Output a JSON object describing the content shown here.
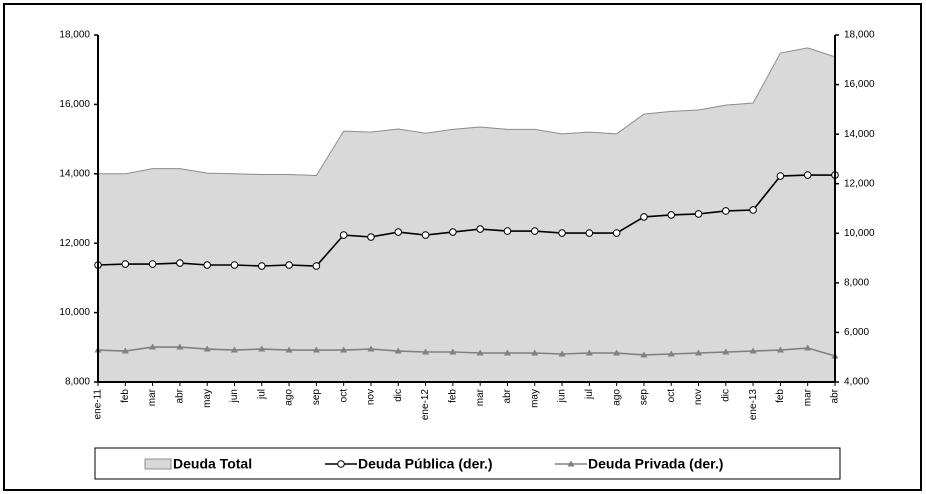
{
  "chart_data": {
    "type": "line",
    "categories": [
      "ene-11",
      "feb",
      "mar",
      "abr",
      "may",
      "jun",
      "jul",
      "ago",
      "sep",
      "oct",
      "nov",
      "dic",
      "ene-12",
      "feb",
      "mar",
      "abr",
      "may",
      "jun",
      "jul",
      "ago",
      "sep",
      "oct",
      "nov",
      "dic",
      "ene-13",
      "feb",
      "mar",
      "abr"
    ],
    "series": [
      {
        "name": "Deuda Total",
        "type": "area",
        "color": "#d9d9d9",
        "axis": "y",
        "values": [
          14000,
          14000,
          14150,
          14150,
          14020,
          14000,
          13980,
          13980,
          13950,
          15230,
          15200,
          15290,
          15170,
          15280,
          15350,
          15280,
          15280,
          15150,
          15200,
          15150,
          15720,
          15800,
          15840,
          15980,
          16040,
          17480,
          17630,
          17370
        ]
      },
      {
        "name": "Deuda Pública (der.)",
        "type": "line",
        "marker": "circle",
        "color": "#000000",
        "axis": "y2",
        "values": [
          8720,
          8760,
          8760,
          8800,
          8720,
          8720,
          8680,
          8720,
          8680,
          9930,
          9850,
          10050,
          9930,
          10050,
          10170,
          10090,
          10090,
          10010,
          10010,
          10010,
          10660,
          10740,
          10780,
          10900,
          10940,
          12310,
          12350,
          12350
        ]
      },
      {
        "name": "Deuda Privada (der.)",
        "type": "line",
        "marker": "triangle",
        "color": "#808080",
        "axis": "y2",
        "values": [
          5290,
          5250,
          5410,
          5410,
          5330,
          5290,
          5330,
          5290,
          5290,
          5290,
          5330,
          5250,
          5210,
          5210,
          5170,
          5170,
          5170,
          5130,
          5170,
          5170,
          5090,
          5130,
          5170,
          5210,
          5250,
          5290,
          5370,
          5050
        ]
      }
    ],
    "ylim": [
      8000,
      18000
    ],
    "yticks": [
      {
        "value": 8000,
        "label": "8,000"
      },
      {
        "value": 10000,
        "label": "10,000"
      },
      {
        "value": 12000,
        "label": "12,000"
      },
      {
        "value": 14000,
        "label": "14,000"
      },
      {
        "value": 16000,
        "label": "16,000"
      },
      {
        "value": 18000,
        "label": "18,000"
      }
    ],
    "y2lim": [
      4000,
      18000
    ],
    "y2ticks": [
      {
        "value": 4000,
        "label": "4,000"
      },
      {
        "value": 6000,
        "label": "6,000"
      },
      {
        "value": 8000,
        "label": "8,000"
      },
      {
        "value": 10000,
        "label": "10,000"
      },
      {
        "value": 12000,
        "label": "12,000"
      },
      {
        "value": 14000,
        "label": "14,000"
      },
      {
        "value": 16000,
        "label": "16,000"
      },
      {
        "value": 18000,
        "label": "18,000"
      }
    ],
    "legend": "bottom",
    "grid": false
  }
}
